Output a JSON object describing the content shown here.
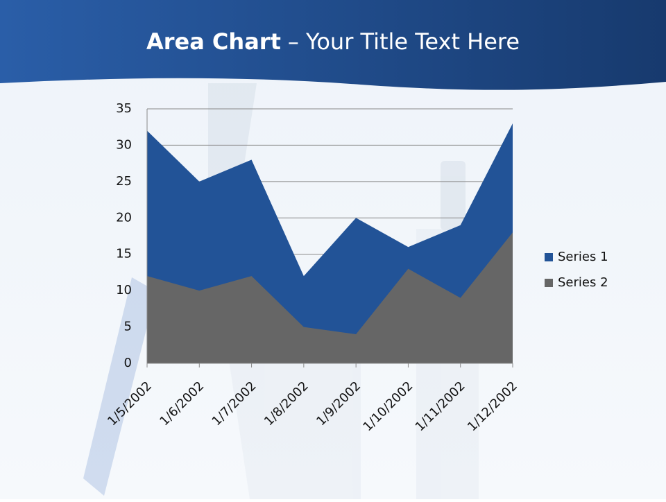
{
  "chart_data": {
    "type": "area",
    "title_bold": "Area Chart",
    "title": "– Your Title Text Here",
    "categories": [
      "1/5/2002",
      "1/6/2002",
      "1/7/2002",
      "1/8/2002",
      "1/9/2002",
      "1/10/2002",
      "1/11/2002",
      "1/12/2002"
    ],
    "series": [
      {
        "name": "Series 1",
        "color": "#225397",
        "values": [
          32,
          25,
          28,
          12,
          20,
          16,
          19,
          33
        ]
      },
      {
        "name": "Series 2",
        "color": "#666666",
        "values": [
          12,
          10,
          12,
          5,
          4,
          13,
          9,
          18
        ]
      }
    ],
    "ylim": [
      0,
      35
    ],
    "yticks": [
      0,
      5,
      10,
      15,
      20,
      25,
      30,
      35
    ],
    "grid": true,
    "legend": "right"
  }
}
